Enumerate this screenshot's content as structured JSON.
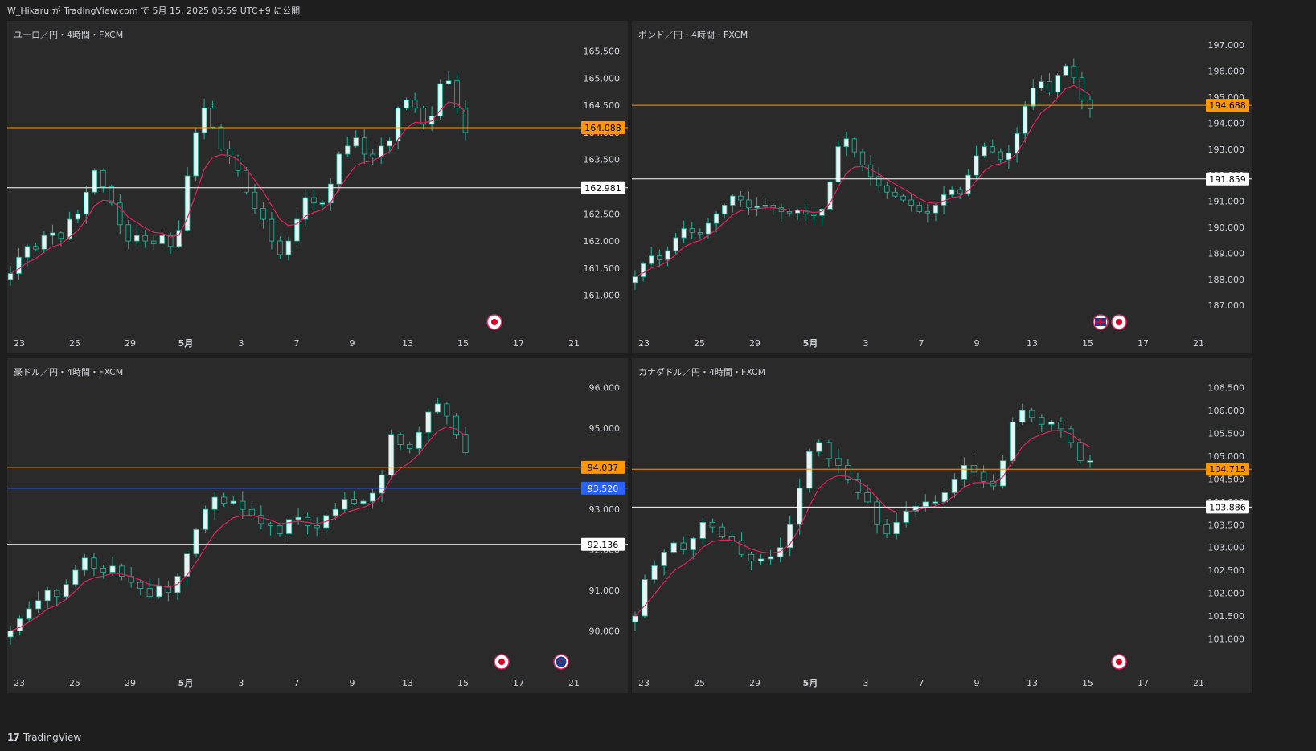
{
  "header": {
    "publish_text": "W_Hikaru が TradingView.com で 5月 15, 2025 05:59 UTC+9 に公開"
  },
  "footer": {
    "brand_mark": "17",
    "brand": "TradingView"
  },
  "colors": {
    "background": "#1e1e1e",
    "panel": "#2a2a2a",
    "candle": "#e8f4f4",
    "candle_outline": "#1fb89d",
    "ma_line": "#e0245e",
    "orange_level": "#ff9800",
    "white_level": "#ffffff",
    "blue_level": "#2962ff",
    "text": "#d1d4dc"
  },
  "x_axis_labels": [
    "23",
    "25",
    "29",
    "5月",
    "3",
    "7",
    "9",
    "13",
    "15",
    "17",
    "21"
  ],
  "panels": [
    {
      "id": "eurjpy",
      "title": "ユーロ／円・4時間・FXCM",
      "y_ticks": [
        "165.500",
        "165.000",
        "164.500",
        "164.000",
        "163.500",
        "163.000",
        "162.500",
        "162.000",
        "161.500",
        "161.000"
      ],
      "y_range": [
        160.55,
        165.85
      ],
      "levels": [
        {
          "value": 164.088,
          "label": "164.088",
          "style": "orange"
        },
        {
          "value": 162.981,
          "label": "162.981",
          "style": "white"
        }
      ],
      "event_icons": [
        "jp-flag-icon"
      ],
      "chart_data": {
        "type": "candlestick",
        "close_path": [
          161.4,
          161.7,
          161.9,
          161.85,
          162.1,
          162.15,
          162.05,
          162.4,
          162.5,
          162.9,
          163.3,
          163.0,
          162.7,
          162.3,
          162.0,
          162.1,
          162.0,
          161.95,
          162.1,
          161.9,
          162.2,
          163.2,
          164.0,
          164.45,
          164.1,
          163.7,
          163.55,
          163.3,
          162.9,
          162.6,
          162.4,
          162.0,
          161.75,
          162.0,
          162.4,
          162.8,
          162.7,
          162.7,
          163.05,
          163.6,
          163.75,
          163.9,
          163.6,
          163.55,
          163.75,
          163.85,
          164.45,
          164.6,
          164.45,
          164.15,
          164.3,
          164.9,
          164.95,
          164.45,
          164.0
        ],
        "ma_period": 20
      }
    },
    {
      "id": "gbpjpy",
      "title": "ポンド／円・4時間・FXCM",
      "y_ticks": [
        "197.000",
        "196.000",
        "195.000",
        "194.000",
        "193.000",
        "192.000",
        "191.000",
        "190.000",
        "189.000",
        "188.000",
        "187.000"
      ],
      "y_range": [
        186.45,
        197.5
      ],
      "levels": [
        {
          "value": 194.688,
          "label": "194.688",
          "style": "orange"
        },
        {
          "value": 191.859,
          "label": "191.859",
          "style": "white"
        }
      ],
      "event_icons": [
        "uk-flag-icon",
        "jp-flag-icon"
      ],
      "chart_data": {
        "type": "candlestick",
        "close_path": [
          188.1,
          188.6,
          188.9,
          188.75,
          189.1,
          189.6,
          189.95,
          189.8,
          189.75,
          190.15,
          190.5,
          190.85,
          191.2,
          191.05,
          190.75,
          190.8,
          190.85,
          190.75,
          190.6,
          190.55,
          190.65,
          190.5,
          190.45,
          190.7,
          191.75,
          193.1,
          193.4,
          192.9,
          192.4,
          191.95,
          191.6,
          191.35,
          191.2,
          191.05,
          190.85,
          190.6,
          190.55,
          190.85,
          191.25,
          191.45,
          191.3,
          192.0,
          192.75,
          193.1,
          192.9,
          192.6,
          192.85,
          193.6,
          194.65,
          195.35,
          195.6,
          195.2,
          195.85,
          196.2,
          195.75,
          194.9,
          194.55
        ],
        "ma_period": 20
      }
    },
    {
      "id": "audjpy",
      "title": "豪ドル／円・4時間・FXCM",
      "y_ticks": [
        "96.000",
        "95.000",
        "94.000",
        "93.000",
        "92.000",
        "91.000",
        "90.000"
      ],
      "y_range": [
        89.3,
        96.45
      ],
      "levels": [
        {
          "value": 94.037,
          "label": "94.037",
          "style": "orange"
        },
        {
          "value": 93.52,
          "label": "93.520",
          "style": "blue"
        },
        {
          "value": 92.136,
          "label": "92.136",
          "style": "white"
        }
      ],
      "event_icons": [
        "jp-flag-icon",
        "au-flag-icon"
      ],
      "chart_data": {
        "type": "candlestick",
        "close_path": [
          90.0,
          90.3,
          90.55,
          90.75,
          91.0,
          90.85,
          91.15,
          91.5,
          91.8,
          91.55,
          91.45,
          91.6,
          91.35,
          91.2,
          91.05,
          90.85,
          91.1,
          90.95,
          91.35,
          91.9,
          92.5,
          93.0,
          93.3,
          93.15,
          93.2,
          93.0,
          92.85,
          92.65,
          92.6,
          92.4,
          92.75,
          92.8,
          92.6,
          92.55,
          92.85,
          93.0,
          93.25,
          93.15,
          93.2,
          93.4,
          93.85,
          94.85,
          94.6,
          94.5,
          94.9,
          95.4,
          95.6,
          95.3,
          94.85,
          94.4
        ],
        "ma_period": 20
      }
    },
    {
      "id": "cadjpy",
      "title": "カナダドル／円・4時間・FXCM",
      "y_ticks": [
        "106.500",
        "106.000",
        "105.500",
        "105.000",
        "104.500",
        "104.000",
        "103.500",
        "103.000",
        "102.500",
        "102.000",
        "101.500",
        "101.000"
      ],
      "y_range": [
        100.55,
        106.9
      ],
      "levels": [
        {
          "value": 104.715,
          "label": "104.715",
          "style": "orange"
        },
        {
          "value": 103.886,
          "label": "103.886",
          "style": "white"
        }
      ],
      "event_icons": [
        "jp-flag-icon"
      ],
      "chart_data": {
        "type": "candlestick",
        "close_path": [
          101.5,
          102.3,
          102.6,
          102.9,
          103.1,
          102.95,
          103.2,
          103.55,
          103.45,
          103.25,
          103.15,
          102.85,
          102.7,
          102.75,
          102.8,
          103.0,
          103.5,
          104.3,
          105.1,
          105.3,
          104.95,
          104.8,
          104.5,
          104.2,
          104.0,
          103.5,
          103.3,
          103.55,
          103.8,
          103.9,
          104.0,
          104.0,
          104.2,
          104.5,
          104.8,
          104.65,
          104.45,
          104.35,
          104.9,
          105.75,
          106.0,
          105.85,
          105.7,
          105.75,
          105.6,
          105.3,
          104.9,
          104.9
        ],
        "ma_period": 20
      }
    }
  ]
}
